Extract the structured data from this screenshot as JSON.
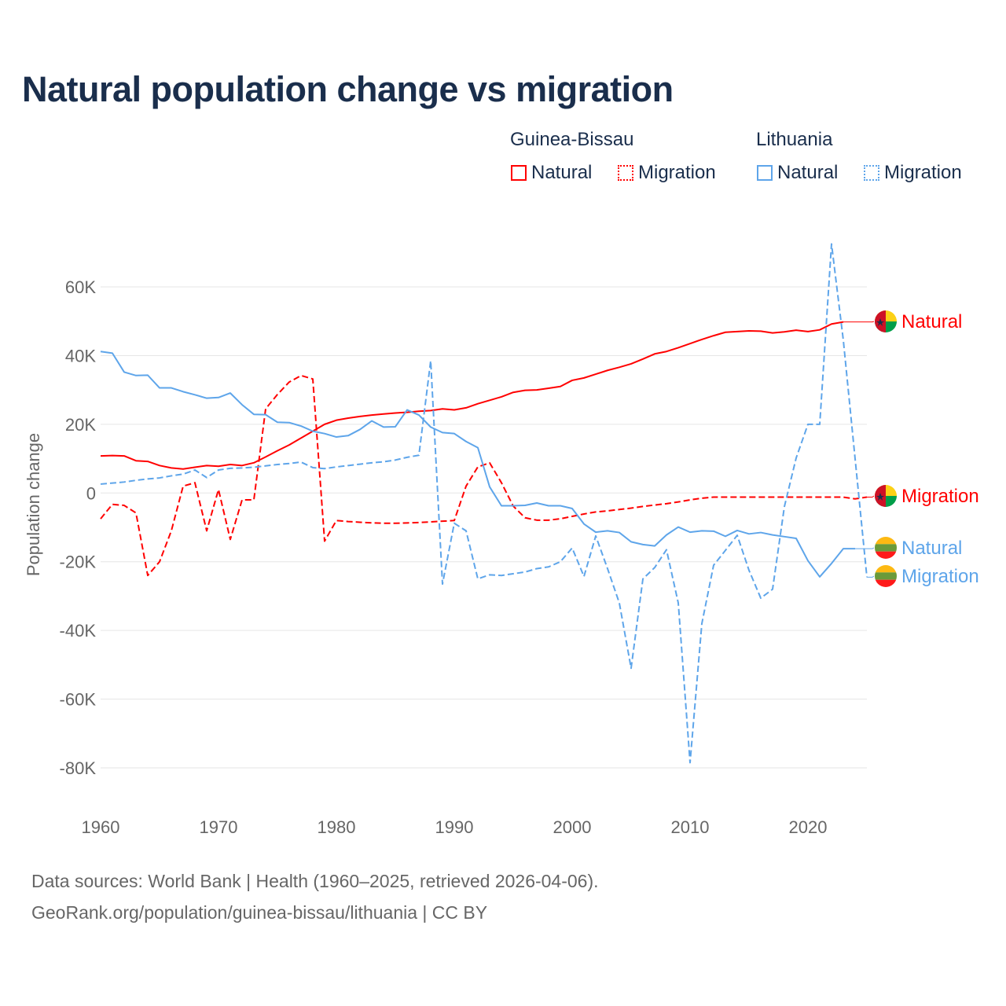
{
  "chart_data": {
    "type": "line",
    "title": "Natural population change vs migration",
    "xlabel": "",
    "ylabel": "Population change",
    "xlim": [
      1960,
      2025
    ],
    "ylim": [
      -90000,
      75000
    ],
    "x_ticks": [
      "1960",
      "1970",
      "1980",
      "1990",
      "2000",
      "2010",
      "2020"
    ],
    "y_ticks": [
      {
        "v": 60000,
        "label": "60K"
      },
      {
        "v": 40000,
        "label": "40K"
      },
      {
        "v": 20000,
        "label": "20K"
      },
      {
        "v": 0,
        "label": "0"
      },
      {
        "v": -20000,
        "label": "-20K"
      },
      {
        "v": -40000,
        "label": "-40K"
      },
      {
        "v": -60000,
        "label": "-60K"
      },
      {
        "v": -80000,
        "label": "-80K"
      }
    ],
    "grid": true,
    "legend_position": "top-right",
    "legend_groups": [
      "Guinea-Bissau",
      "Lithuania"
    ],
    "series": [
      {
        "name": "Natural",
        "country": "Guinea-Bissau",
        "color": "#ff0000",
        "dash": false,
        "start": 1960,
        "end_label": "Natural",
        "values": [
          10.8,
          10.9,
          10.8,
          9.4,
          9.2,
          8.0,
          7.3,
          7.0,
          7.5,
          8.0,
          7.8,
          8.3,
          8.0,
          8.8,
          10.5,
          12.3,
          14.0,
          16.0,
          18.0,
          20.0,
          21.2,
          21.8,
          22.3,
          22.7,
          23.0,
          23.3,
          23.5,
          23.8,
          24.0,
          24.5,
          24.2,
          24.8,
          26.0,
          27.0,
          28.0,
          29.3,
          29.9,
          30.0,
          30.5,
          31.0,
          32.8,
          33.5,
          34.6,
          35.7,
          36.6,
          37.6,
          39.0,
          40.5,
          41.2,
          42.3,
          43.5,
          44.7,
          45.8,
          46.8,
          47.0,
          47.2,
          47.1,
          46.6,
          46.9,
          47.4,
          47.0,
          47.5,
          49.2,
          49.8
        ]
      },
      {
        "name": "Migration",
        "country": "Guinea-Bissau",
        "color": "#ff0000",
        "dash": true,
        "start": 1960,
        "end_label": "Migration",
        "values": [
          -7.5,
          -3.3,
          -3.6,
          -5.8,
          -24,
          -20,
          -11,
          2,
          3,
          -11,
          1,
          -13.5,
          -2,
          -2,
          24.5,
          28.7,
          32.3,
          34.2,
          33.2,
          -14,
          -8,
          -8.3,
          -8.5,
          -8.7,
          -8.8,
          -8.8,
          -8.7,
          -8.6,
          -8.4,
          -8.2,
          -8,
          2,
          7.6,
          8.8,
          3,
          -3.8,
          -7.2,
          -7.9,
          -7.9,
          -7.5,
          -6.8,
          -6.1,
          -5.5,
          -5.2,
          -4.8,
          -4.4,
          -3.9,
          -3.5,
          -3.1,
          -2.6,
          -2.0,
          -1.5,
          -1.2,
          -1.2,
          -1.2,
          -1.2,
          -1.2,
          -1.2,
          -1.2,
          -1.2,
          -1.2,
          -1.2,
          -1.2,
          -1.2,
          -1.7,
          -1.2
        ]
      },
      {
        "name": "Natural",
        "country": "Lithuania",
        "color": "#5ea5ea",
        "dash": false,
        "start": 1960,
        "end_label": "Natural",
        "values": [
          41.2,
          40.7,
          35.2,
          34.2,
          34.3,
          30.6,
          30.6,
          29.5,
          28.6,
          27.6,
          27.8,
          29.1,
          25.7,
          22.9,
          22.8,
          20.6,
          20.5,
          19.5,
          18.0,
          17.3,
          16.3,
          16.7,
          18.5,
          21.0,
          19.2,
          19.3,
          24.2,
          22.7,
          19.2,
          17.6,
          17.3,
          15.0,
          13.2,
          1.8,
          -3.7,
          -3.7,
          -3.6,
          -2.9,
          -3.7,
          -3.7,
          -4.5,
          -9.0,
          -11.4,
          -11.0,
          -11.5,
          -14.2,
          -15.0,
          -15.4,
          -12.2,
          -9.9,
          -11.4,
          -11.0,
          -11.1,
          -12.6,
          -10.9,
          -11.9,
          -11.5,
          -12.2,
          -12.7,
          -13.2,
          -19.7,
          -24.4,
          -20.5,
          -16.2,
          -16.2
        ]
      },
      {
        "name": "Migration",
        "country": "Lithuania",
        "color": "#5ea5ea",
        "dash": true,
        "start": 1960,
        "end_label": "Migration",
        "values": [
          2.6,
          2.9,
          3.2,
          3.7,
          4.1,
          4.4,
          5.0,
          5.5,
          6.7,
          4.5,
          6.7,
          7.2,
          7.3,
          7.5,
          7.9,
          8.3,
          8.6,
          9.0,
          7.4,
          7.1,
          7.6,
          8.0,
          8.4,
          8.8,
          9.1,
          9.6,
          10.4,
          11.0,
          38.5,
          -26.5,
          -8.8,
          -11.0,
          -25.0,
          -23.8,
          -24.0,
          -23.5,
          -23.0,
          -22.0,
          -21.5,
          -20.0,
          -16.0,
          -24.3,
          -12.5,
          -22.0,
          -32.0,
          -51.0,
          -25.0,
          -21.7,
          -16.5,
          -32.0,
          -78.5,
          -38.0,
          -21.0,
          -16.7,
          -12.3,
          -22.5,
          -30.6,
          -28.0,
          -4.0,
          10.2,
          20.0,
          20.0,
          72.5,
          44.5,
          10.0,
          -24.5
        ]
      }
    ],
    "value_unit_note": "values in thousands"
  },
  "footer": {
    "line1": "Data sources: World Bank | Health (1960–2025, retrieved 2026-04-06).",
    "line2": "GeoRank.org/population/guinea-bissau/lithuania | CC BY"
  }
}
